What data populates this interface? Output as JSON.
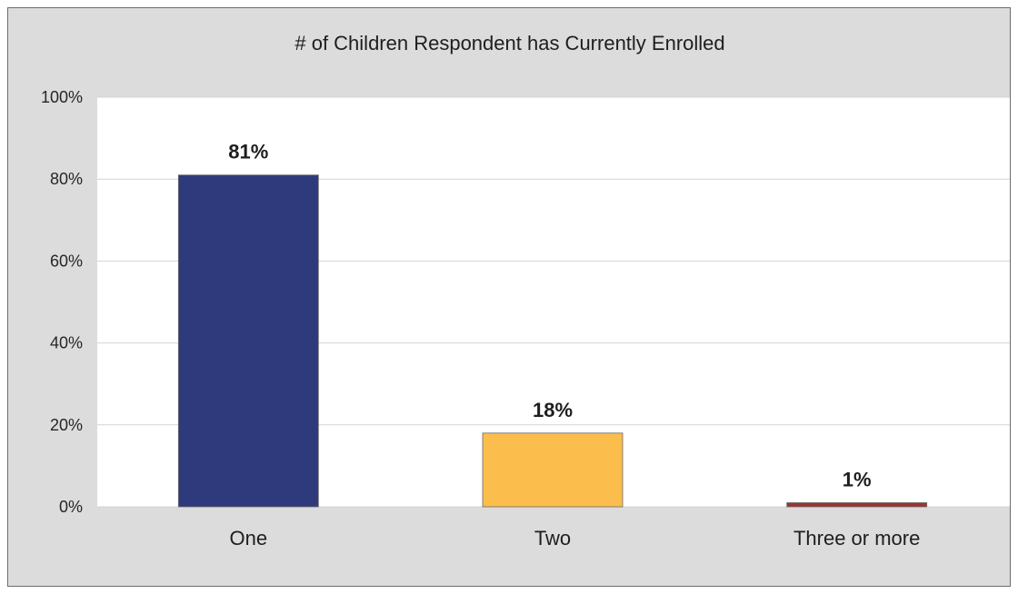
{
  "chart_data": {
    "type": "bar",
    "title": "# of Children Respondent has Currently Enrolled",
    "xlabel": "",
    "ylabel": "",
    "categories": [
      "One",
      "Two",
      "Three or more"
    ],
    "values": [
      81,
      18,
      1
    ],
    "value_labels": [
      "81%",
      "18%",
      "1%"
    ],
    "colors": [
      "#2e3a7c",
      "#fbbd4c",
      "#9b3430"
    ],
    "ylim": [
      0,
      100
    ],
    "yticks": [
      0,
      20,
      40,
      60,
      80,
      100
    ],
    "ytick_labels": [
      "0%",
      "20%",
      "40%",
      "60%",
      "80%",
      "100%"
    ],
    "grid": true,
    "legend": "none"
  }
}
